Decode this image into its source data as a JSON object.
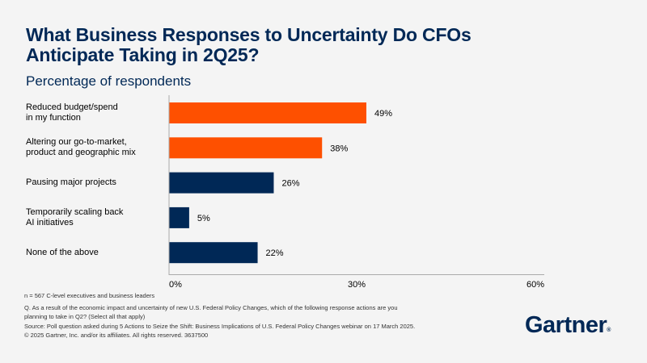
{
  "chart_data": {
    "type": "bar",
    "orientation": "horizontal",
    "title": "What Business Responses to Uncertainty Do CFOs Anticipate Taking in 2Q25?",
    "subtitle": "Percentage of respondents",
    "categories": [
      "Reduced budget/spend in my function",
      "Altering our go-to-market, product and geographic mix",
      "Pausing major projects",
      "Temporarily scaling back AI initiatives",
      "None of the above"
    ],
    "category_lines": [
      [
        "Reduced budget/spend",
        "in my function"
      ],
      [
        "Altering our go-to-market,",
        "product and geographic mix"
      ],
      [
        "Pausing major projects"
      ],
      [
        "Temporarily scaling back",
        "AI initiatives"
      ],
      [
        "None of the above"
      ]
    ],
    "values": [
      49,
      38,
      26,
      5,
      22
    ],
    "value_labels": [
      "49%",
      "38%",
      "26%",
      "5%",
      "22%"
    ],
    "bar_colors": [
      "#fe5000",
      "#fe5000",
      "#002856",
      "#002856",
      "#002856"
    ],
    "xticks": [
      "0%",
      "30%",
      "60%"
    ],
    "xlim": [
      0,
      60
    ],
    "xlabel": "",
    "ylabel": "",
    "grid": false,
    "legend": "none"
  },
  "footnotes": {
    "sample": "n = 567 C-level executives and business leaders",
    "question_line1": "Q. As a result of the economic impact and uncertainty of new U.S. Federal Policy Changes, which of the following response actions are you",
    "question_line2": "planning to take in Q2? (Select all that apply)",
    "source": "Source: Poll question asked during 5 Actions to Seize the Shift: Business Implications of U.S. Federal Policy Changes webinar on 17 March 2025.",
    "copyright": "© 2025 Gartner, Inc. and/or its affiliates. All rights reserved. 3637500"
  },
  "brand": {
    "logo_text": "Gartner",
    "registered": "®"
  }
}
